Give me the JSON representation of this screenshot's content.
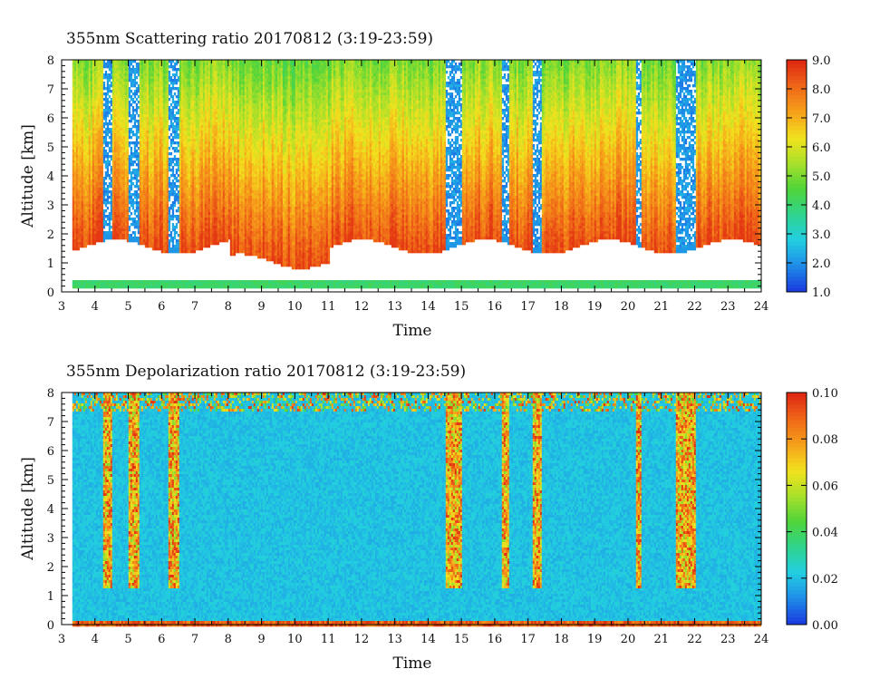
{
  "chart_data": [
    {
      "type": "heatmap",
      "title": "355nm Scattering ratio  20170812 (3:19-23:59)",
      "xlabel": "Time",
      "ylabel": "Altitude [km]",
      "xlim": [
        3,
        24
      ],
      "ylim": [
        0,
        8
      ],
      "x_ticks": [
        "3",
        "4",
        "5",
        "6",
        "7",
        "8",
        "9",
        "10",
        "11",
        "12",
        "13",
        "14",
        "15",
        "16",
        "17",
        "18",
        "19",
        "20",
        "21",
        "22",
        "23",
        "24"
      ],
      "y_ticks": [
        "0",
        "1",
        "2",
        "3",
        "4",
        "5",
        "6",
        "7",
        "8"
      ],
      "colorbar": {
        "range": [
          1.0,
          9.0
        ],
        "ticks": [
          "1.0",
          "2.0",
          "3.0",
          "4.0",
          "5.0",
          "6.0",
          "7.0",
          "8.0",
          "9.0"
        ],
        "colormap": [
          "#1a3ee0",
          "#1f8fe8",
          "#22cfe0",
          "#2fd48c",
          "#4fd43a",
          "#a8e02a",
          "#f2e21e",
          "#f6a21a",
          "#f06a18",
          "#e02a12"
        ]
      },
      "data_start_hour": 3.32,
      "data_end_hour": 23.98,
      "cloud_base_km": 1.6,
      "low_layer_km": [
        0.2,
        0.45
      ],
      "clear_columns_hours": [
        [
          4.2,
          4.5
        ],
        [
          5.0,
          5.3
        ],
        [
          6.2,
          6.5
        ],
        [
          14.5,
          15.0
        ],
        [
          16.2,
          16.4
        ],
        [
          17.1,
          17.4
        ],
        [
          20.2,
          20.4
        ],
        [
          21.4,
          22.0
        ]
      ]
    },
    {
      "type": "heatmap",
      "title": "355nm Depolarization ratio  20170812 (3:19-23:59)",
      "xlabel": "Time",
      "ylabel": "Altitude [km]",
      "xlim": [
        3,
        24
      ],
      "ylim": [
        0,
        8
      ],
      "x_ticks": [
        "3",
        "4",
        "5",
        "6",
        "7",
        "8",
        "9",
        "10",
        "11",
        "12",
        "13",
        "14",
        "15",
        "16",
        "17",
        "18",
        "19",
        "20",
        "21",
        "22",
        "23",
        "24"
      ],
      "y_ticks": [
        "0",
        "1",
        "2",
        "3",
        "4",
        "5",
        "6",
        "7",
        "8"
      ],
      "colorbar": {
        "range": [
          0.0,
          0.1
        ],
        "ticks": [
          "0.00",
          "0.02",
          "0.04",
          "0.06",
          "0.08",
          "0.10"
        ],
        "colormap": [
          "#1a3ee0",
          "#1f8fe8",
          "#22cfe0",
          "#2fd48c",
          "#4fd43a",
          "#a8e02a",
          "#f2e21e",
          "#f6a21a",
          "#f06a18",
          "#e02a12"
        ]
      },
      "data_start_hour": 3.32,
      "data_end_hour": 23.98,
      "background_value": 0.02,
      "high_depol_columns_hours": [
        [
          4.2,
          4.5
        ],
        [
          5.0,
          5.3
        ],
        [
          6.2,
          6.5
        ],
        [
          14.5,
          15.0
        ],
        [
          16.2,
          16.4
        ],
        [
          17.1,
          17.4
        ],
        [
          20.2,
          20.4
        ],
        [
          21.4,
          22.0
        ]
      ]
    }
  ]
}
